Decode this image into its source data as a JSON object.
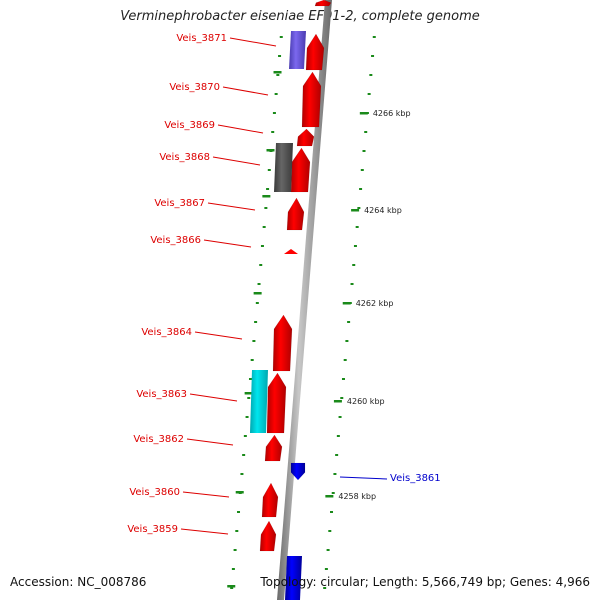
{
  "title": "Verminephrobacter eiseniae EF01-2, complete genome",
  "footer": {
    "accession": "Accession: NC_008786",
    "summary": "Topology: circular; Length: 5,566,749 bp; Genes: 4,966"
  },
  "colors": {
    "forward_cds": "#ff0000",
    "reverse_cds": "#0000ff",
    "purple_feature": "#7b68ee",
    "gray_feature": "#666666",
    "cyan_feature": "#00e5ee",
    "tick": "#1a8a1a",
    "label_forward": "#dd0000",
    "label_reverse": "#0000cc"
  },
  "kbp_labels": [
    {
      "text": "4266 kbp"
    },
    {
      "text": "4264 kbp"
    },
    {
      "text": "4262 kbp"
    },
    {
      "text": "4260 kbp"
    },
    {
      "text": "4258 kbp"
    }
  ],
  "gene_labels": [
    {
      "text": "Veis_3871",
      "strand": "forward"
    },
    {
      "text": "Veis_3870",
      "strand": "forward"
    },
    {
      "text": "Veis_3869",
      "strand": "forward"
    },
    {
      "text": "Veis_3868",
      "strand": "forward"
    },
    {
      "text": "Veis_3867",
      "strand": "forward"
    },
    {
      "text": "Veis_3866",
      "strand": "forward"
    },
    {
      "text": "Veis_3864",
      "strand": "forward"
    },
    {
      "text": "Veis_3863",
      "strand": "forward"
    },
    {
      "text": "Veis_3862",
      "strand": "forward"
    },
    {
      "text": "Veis_3861",
      "strand": "reverse"
    },
    {
      "text": "Veis_3860",
      "strand": "forward"
    },
    {
      "text": "Veis_3859",
      "strand": "forward"
    }
  ]
}
